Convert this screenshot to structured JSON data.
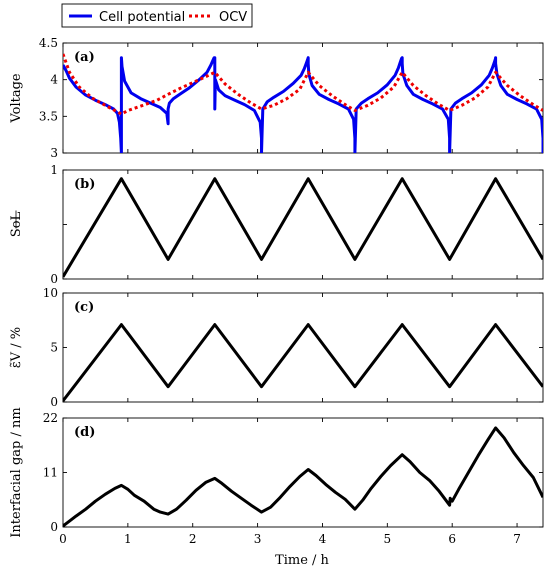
{
  "legend": {
    "items": [
      {
        "label": "Cell potential",
        "color": "#0000ee",
        "dash": "solid"
      },
      {
        "label": "OCV",
        "color": "#ee0000",
        "dash": "dotted"
      }
    ]
  },
  "xaxis": {
    "label": "Time / h",
    "ticks": [
      "0",
      "1",
      "2",
      "3",
      "4",
      "5",
      "6",
      "7"
    ],
    "lim": [
      0,
      7.4
    ]
  },
  "chart_data": [
    {
      "type": "line",
      "panel": "(a)",
      "ylabel": "Voltage",
      "ylim": [
        3,
        4.5
      ],
      "yticks": [
        "3",
        "3.5",
        "4",
        "4.5"
      ],
      "series": [
        {
          "name": "Cell potential",
          "color": "#0000ee",
          "x": [
            0,
            0.05,
            0.1,
            0.2,
            0.35,
            0.5,
            0.65,
            0.78,
            0.84,
            0.87,
            0.89,
            0.9,
            0.9,
            0.91,
            0.95,
            1.05,
            1.2,
            1.35,
            1.5,
            1.6,
            1.62,
            1.62,
            1.64,
            1.7,
            1.8,
            1.95,
            2.1,
            2.22,
            2.28,
            2.31,
            2.33,
            2.34,
            2.34,
            2.35,
            2.4,
            2.5,
            2.65,
            2.8,
            2.95,
            3.04,
            3.06,
            3.06,
            3.08,
            3.15,
            3.25,
            3.4,
            3.55,
            3.67,
            3.72,
            3.75,
            3.77,
            3.78,
            3.78,
            3.79,
            3.84,
            3.95,
            4.1,
            4.25,
            4.4,
            4.48,
            4.5,
            4.5,
            4.52,
            4.6,
            4.7,
            4.85,
            5.0,
            5.12,
            5.17,
            5.2,
            5.22,
            5.23,
            5.23,
            5.24,
            5.3,
            5.4,
            5.55,
            5.7,
            5.85,
            5.94,
            5.96,
            5.96,
            5.98,
            6.05,
            6.15,
            6.3,
            6.45,
            6.57,
            6.62,
            6.65,
            6.67,
            6.67,
            6.67,
            6.69,
            6.75,
            6.85,
            7.0,
            7.15,
            7.3,
            7.38,
            7.4,
            7.4
          ],
          "y": [
            4.2,
            4.12,
            4.02,
            3.9,
            3.79,
            3.72,
            3.66,
            3.6,
            3.54,
            3.42,
            3.2,
            3.0,
            4.3,
            4.18,
            3.98,
            3.82,
            3.74,
            3.68,
            3.62,
            3.54,
            3.4,
            3.6,
            3.68,
            3.74,
            3.8,
            3.89,
            4.0,
            4.1,
            4.2,
            4.26,
            4.3,
            4.3,
            3.6,
            4.0,
            3.86,
            3.78,
            3.72,
            3.66,
            3.58,
            3.42,
            3.2,
            3.0,
            3.6,
            3.7,
            3.76,
            3.84,
            3.95,
            4.06,
            4.15,
            4.22,
            4.27,
            4.3,
            4.22,
            4.08,
            3.92,
            3.8,
            3.73,
            3.67,
            3.6,
            3.46,
            3.2,
            3.0,
            3.6,
            3.68,
            3.74,
            3.82,
            3.93,
            4.06,
            4.16,
            4.24,
            4.29,
            4.3,
            4.22,
            4.08,
            3.92,
            3.8,
            3.73,
            3.67,
            3.6,
            3.46,
            3.2,
            3.0,
            3.6,
            3.68,
            3.74,
            3.82,
            3.93,
            4.06,
            4.16,
            4.24,
            4.29,
            4.3,
            4.22,
            4.08,
            3.92,
            3.8,
            3.73,
            3.67,
            3.6,
            3.46,
            3.2,
            3.0
          ]
        },
        {
          "name": "OCV",
          "color": "#ee0000",
          "x": [
            0,
            0.1,
            0.25,
            0.45,
            0.65,
            0.9,
            1.0,
            1.2,
            1.45,
            1.62,
            1.8,
            2.0,
            2.2,
            2.34,
            2.5,
            2.7,
            2.9,
            3.06,
            3.25,
            3.45,
            3.65,
            3.78,
            3.95,
            4.15,
            4.35,
            4.5,
            4.7,
            4.9,
            5.1,
            5.23,
            5.4,
            5.6,
            5.8,
            5.96,
            6.15,
            6.35,
            6.55,
            6.67,
            6.85,
            7.05,
            7.25,
            7.4
          ],
          "y": [
            4.35,
            4.1,
            3.9,
            3.75,
            3.65,
            3.53,
            3.58,
            3.64,
            3.72,
            3.8,
            3.88,
            3.96,
            4.04,
            4.1,
            3.94,
            3.8,
            3.68,
            3.6,
            3.65,
            3.74,
            3.87,
            4.1,
            3.92,
            3.78,
            3.66,
            3.58,
            3.65,
            3.75,
            3.9,
            4.1,
            3.92,
            3.78,
            3.66,
            3.58,
            3.65,
            3.75,
            3.9,
            4.1,
            3.92,
            3.78,
            3.66,
            3.58
          ]
        }
      ]
    },
    {
      "type": "line",
      "panel": "(b)",
      "ylabel": "SoL",
      "ylim": [
        0,
        1
      ],
      "yticks": [
        "0",
        "",
        "1"
      ],
      "series": [
        {
          "color": "#000000",
          "x": [
            0,
            0.9,
            1.62,
            2.34,
            3.06,
            3.78,
            4.5,
            5.23,
            5.96,
            6.67,
            7.4
          ],
          "y": [
            0.02,
            0.92,
            0.18,
            0.92,
            0.18,
            0.92,
            0.18,
            0.92,
            0.18,
            0.92,
            0.18
          ]
        }
      ]
    },
    {
      "type": "line",
      "panel": "(c)",
      "ylabel": "ε̃V / %",
      "ylim": [
        0,
        10
      ],
      "yticks": [
        "0",
        "5",
        "10"
      ],
      "series": [
        {
          "color": "#000000",
          "x": [
            0,
            0.9,
            1.62,
            2.34,
            3.06,
            3.78,
            4.5,
            5.23,
            5.96,
            6.67,
            7.4
          ],
          "y": [
            0.1,
            7.1,
            1.4,
            7.1,
            1.4,
            7.1,
            1.4,
            7.1,
            1.4,
            7.1,
            1.4
          ]
        }
      ]
    },
    {
      "type": "line",
      "panel": "(d)",
      "ylabel": "Interfacial gap / nm",
      "ylim": [
        0,
        22
      ],
      "yticks": [
        "0",
        "11",
        "22"
      ],
      "series": [
        {
          "color": "#000000",
          "x": [
            0,
            0.1,
            0.2,
            0.35,
            0.5,
            0.65,
            0.8,
            0.9,
            1.0,
            1.1,
            1.25,
            1.4,
            1.5,
            1.62,
            1.75,
            1.9,
            2.05,
            2.2,
            2.34,
            2.45,
            2.6,
            2.75,
            2.9,
            3.06,
            3.2,
            3.35,
            3.5,
            3.65,
            3.78,
            3.9,
            4.05,
            4.2,
            4.35,
            4.5,
            4.62,
            4.75,
            4.9,
            5.05,
            5.23,
            5.35,
            5.5,
            5.65,
            5.8,
            5.96,
            5.97,
            6.0,
            6.1,
            6.25,
            6.4,
            6.55,
            6.67,
            6.8,
            6.95,
            7.1,
            7.25,
            7.4
          ],
          "y": [
            0.2,
            1.2,
            2.2,
            3.6,
            5.2,
            6.6,
            7.8,
            8.4,
            7.6,
            6.4,
            5.2,
            3.6,
            3.0,
            2.6,
            3.6,
            5.4,
            7.4,
            9.0,
            9.8,
            8.8,
            7.2,
            5.8,
            4.4,
            3.0,
            4.0,
            6.0,
            8.2,
            10.2,
            11.6,
            10.4,
            8.6,
            7.0,
            5.6,
            3.6,
            5.4,
            7.8,
            10.2,
            12.4,
            14.6,
            13.2,
            11.0,
            9.4,
            7.2,
            4.4,
            5.8,
            5.2,
            7.6,
            11.0,
            14.4,
            17.6,
            20.0,
            18.0,
            15.0,
            12.4,
            10.0,
            6.0
          ]
        }
      ]
    }
  ]
}
